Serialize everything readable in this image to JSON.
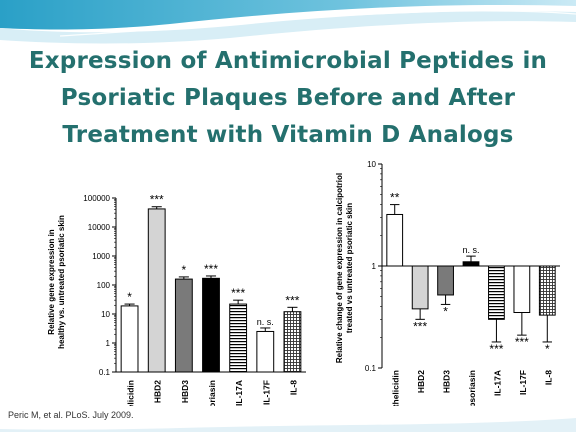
{
  "slide": {
    "title_lines": [
      "Expression of Antimicrobial Peptides in",
      "Psoriatic Plaques Before and After",
      "Treatment with Vitamin D Analogs"
    ],
    "citation": "Peric M, et al. PLoS. July 2009.",
    "accent_color": "#24706e"
  },
  "chart_data": [
    {
      "type": "bar",
      "title": "",
      "ylabel": "Relative gene expression in healthy vs. untreated psoriatic skin",
      "ylabel_lines": [
        "Relative gene expression in",
        "healthy vs. untreated psoriatic skin"
      ],
      "yscale": "log",
      "ylim": [
        0.1,
        100000
      ],
      "yticks": [
        0.1,
        1,
        10,
        100,
        1000,
        10000,
        100000
      ],
      "ytick_labels": [
        "0.1",
        "1",
        "10",
        "100",
        "1000",
        "10000",
        "100000"
      ],
      "categories": [
        "cathelicidin",
        "HBD2",
        "HBD3",
        "psoriasin",
        "IL-17A",
        "IL-17F",
        "IL-8"
      ],
      "values": [
        19,
        42000,
        160,
        170,
        22,
        2.5,
        12
      ],
      "errors": [
        3,
        8000,
        30,
        35,
        8,
        0.8,
        5
      ],
      "significance": [
        "*",
        "***",
        "*",
        "***",
        "***",
        "n. s.",
        "***"
      ],
      "fills": [
        "white",
        "lightgray",
        "gray",
        "black",
        "hstripes",
        "white",
        "grid"
      ]
    },
    {
      "type": "bar",
      "title": "",
      "ylabel": "Relative change of gene expression in calcipotriol treated vs untreated psoriatic skin",
      "ylabel_lines": [
        "Relative change of  gene expression in calcipotriol",
        "treated vs untreated psoriatic skin"
      ],
      "yscale": "log",
      "ylim": [
        0.1,
        10
      ],
      "yticks": [
        0.1,
        1,
        10
      ],
      "ytick_labels": [
        "0.1",
        "1",
        "10"
      ],
      "categories": [
        "cathelicidin",
        "HBD2",
        "HBD3",
        "psoriasin",
        "IL-17A",
        "IL-17F",
        "IL-8"
      ],
      "values": [
        3.2,
        0.38,
        0.52,
        1.1,
        0.3,
        0.35,
        0.33
      ],
      "errors": [
        0.8,
        0.08,
        0.1,
        0.15,
        0.12,
        0.14,
        0.15
      ],
      "significance": [
        "**",
        "***",
        "*",
        "n. s.",
        "***",
        "***",
        "*"
      ],
      "fills": [
        "white",
        "lightgray",
        "gray",
        "black",
        "hstripes",
        "white",
        "grid"
      ]
    }
  ]
}
